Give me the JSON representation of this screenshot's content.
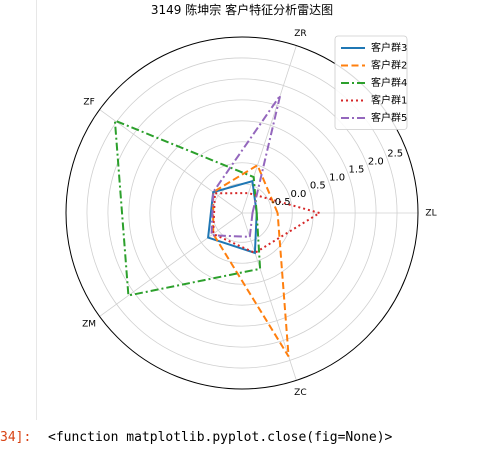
{
  "cell": {
    "prompt": "34]:",
    "output": "<function matplotlib.pyplot.close(fig=None)>"
  },
  "chart_data": {
    "type": "radar",
    "title": "3149 陈坤宗 客户特征分析雷达图",
    "axes": [
      "ZL",
      "ZR",
      "ZF",
      "ZM",
      "ZC"
    ],
    "radial_ticks": [
      "-0.5",
      "0.0",
      "0.5",
      "1.0",
      "1.5",
      "2.0",
      "2.5"
    ],
    "radial_tick_values": [
      -0.5,
      0.0,
      0.5,
      1.0,
      1.5,
      2.0,
      2.5
    ],
    "rlim": [
      -1.2,
      3.0
    ],
    "grid": true,
    "legend_position": "top-right",
    "series": [
      {
        "name": "客户群3",
        "color": "#1f77b4",
        "dash": "solid",
        "values": [
          -0.85,
          -0.4,
          -0.35,
          -0.2,
          -0.2
        ]
      },
      {
        "name": "客户群2",
        "color": "#ff7f0e",
        "dash": "dashed",
        "values": [
          -0.35,
          0.0,
          -0.35,
          -0.35,
          2.4
        ]
      },
      {
        "name": "客户群4",
        "color": "#2ca02c",
        "dash": "dashdot",
        "values": [
          -0.85,
          -0.3,
          2.55,
          2.15,
          0.2
        ]
      },
      {
        "name": "客户群1",
        "color": "#d62728",
        "dash": "dotted",
        "values": [
          0.65,
          -0.7,
          -0.4,
          -0.35,
          -0.2
        ]
      },
      {
        "name": "客户群5",
        "color": "#9467bd",
        "dash": "dashdot",
        "values": [
          -0.95,
          1.75,
          -0.35,
          -0.3,
          -0.6
        ]
      }
    ]
  }
}
